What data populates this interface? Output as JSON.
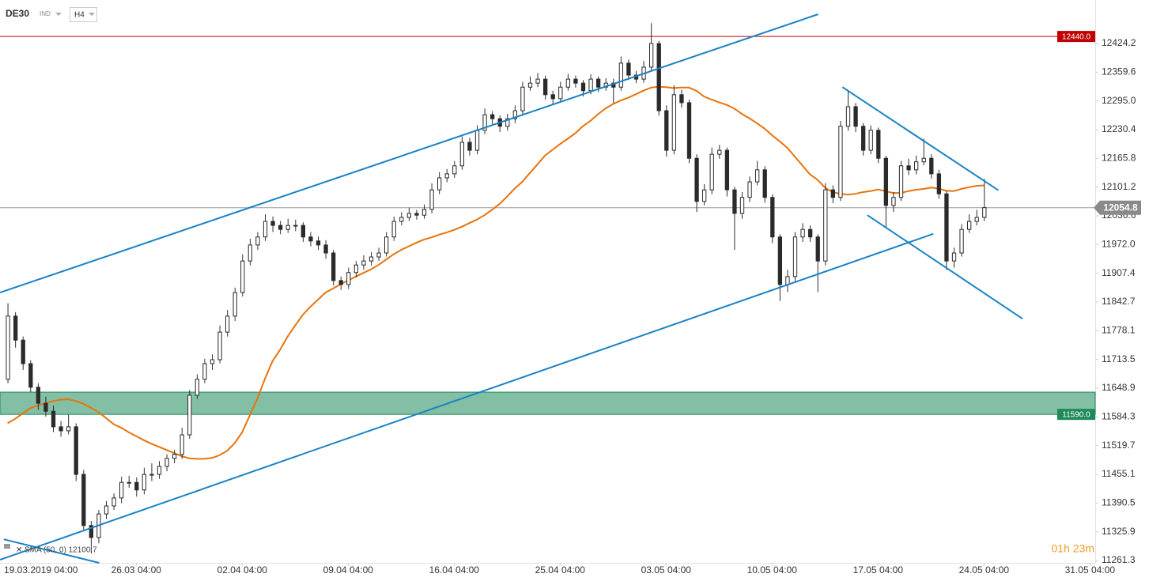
{
  "chart_data": {
    "type": "candlestick",
    "symbol": "DE30",
    "market": "IND",
    "timeframe": "H4",
    "timer": "01h 23m",
    "candle_up_color": "#ffffff",
    "candle_down_color": "#2b2b2b",
    "open": [
      11669,
      11811,
      11757,
      11704,
      11651,
      11615,
      11597,
      11562,
      11553,
      11562,
      11455,
      11340,
      11313,
      11366,
      11384,
      11402,
      11437,
      11437,
      11420,
      11455,
      11455,
      11473,
      11491,
      11500,
      11544,
      11633,
      11669,
      11704,
      11713,
      11775,
      11811,
      11864,
      11935,
      11971,
      11989,
      12024,
      12015,
      12006,
      12015,
      12015,
      11989,
      11980,
      11971,
      11953,
      11891,
      11882,
      11909,
      11926,
      11935,
      11944,
      11953,
      11989,
      12024,
      12033,
      12042,
      12038,
      12051,
      12095,
      12122,
      12131,
      12149,
      12202,
      12184,
      12229,
      12264,
      12255,
      12238,
      12255,
      12273,
      12326,
      12335,
      12344,
      12309,
      12300,
      12326,
      12344,
      12335,
      12318,
      12344,
      12326,
      12335,
      12326,
      12380,
      12353,
      12344,
      12371,
      12424,
      12273,
      12184,
      12309,
      12291,
      12166,
      12069,
      12095,
      12175,
      12184,
      12095,
      12042,
      12078,
      12113,
      12140,
      12078,
      11989,
      11882,
      11900,
      11989,
      12006,
      11989,
      11935,
      12095,
      12078,
      12238,
      12282,
      12238,
      12184,
      12229,
      12166,
      12060,
      12078,
      12149,
      12140,
      12158,
      12166,
      12131,
      12086,
      11935,
      11953,
      12006,
      12024,
      12033
    ],
    "high": [
      11840,
      11820,
      11765,
      11712,
      11660,
      11630,
      11610,
      11575,
      11590,
      11570,
      11465,
      11350,
      11375,
      11395,
      11412,
      11450,
      11452,
      11448,
      11470,
      11480,
      11485,
      11500,
      11510,
      11560,
      11645,
      11680,
      11715,
      11725,
      11790,
      11825,
      11875,
      11950,
      11985,
      12000,
      12040,
      12035,
      12025,
      12030,
      12028,
      12022,
      12000,
      11990,
      11982,
      11960,
      11900,
      11920,
      11935,
      11948,
      11955,
      11965,
      12000,
      12035,
      12045,
      12055,
      12050,
      12062,
      12110,
      12135,
      12142,
      12160,
      12215,
      12212,
      12240,
      12278,
      12272,
      12262,
      12266,
      12285,
      12338,
      12350,
      12358,
      12352,
      12318,
      12338,
      12356,
      12352,
      12342,
      12355,
      12350,
      12346,
      12345,
      12395,
      12388,
      12362,
      12385,
      12470,
      12430,
      12285,
      12330,
      12320,
      12298,
      12175,
      12108,
      12190,
      12196,
      12190,
      12102,
      12090,
      12125,
      12160,
      12148,
      12085,
      11995,
      11915,
      12000,
      12020,
      12015,
      11995,
      12110,
      12105,
      12250,
      12320,
      12290,
      12245,
      12240,
      12235,
      12172,
      12090,
      12160,
      12165,
      12172,
      12210,
      12175,
      12140,
      12092,
      11965,
      12018,
      12040,
      12050,
      12120
    ],
    "low": [
      11660,
      11740,
      11690,
      11640,
      11600,
      11585,
      11550,
      11540,
      11545,
      11440,
      11330,
      11277,
      11300,
      11355,
      11375,
      11390,
      11425,
      11405,
      11410,
      11440,
      11445,
      11462,
      11480,
      11490,
      11535,
      11625,
      11660,
      11690,
      11705,
      11765,
      11800,
      11855,
      11925,
      11960,
      11980,
      12000,
      11995,
      11998,
      12002,
      11978,
      11968,
      11960,
      11940,
      11880,
      11870,
      11872,
      11898,
      11915,
      11925,
      11935,
      11945,
      11980,
      12015,
      12025,
      12028,
      12030,
      12042,
      12085,
      12112,
      12122,
      12140,
      12172,
      12175,
      12220,
      12242,
      12225,
      12228,
      12245,
      12265,
      12318,
      12326,
      12298,
      12288,
      12292,
      12318,
      12325,
      12305,
      12310,
      12315,
      12318,
      12290,
      12318,
      12342,
      12335,
      12336,
      12362,
      12262,
      12170,
      12175,
      12280,
      12155,
      12045,
      12060,
      12085,
      12165,
      12080,
      11960,
      12030,
      12068,
      12105,
      12066,
      11975,
      11845,
      11865,
      11890,
      11978,
      11978,
      11865,
      11925,
      12065,
      12070,
      12228,
      12225,
      12172,
      12175,
      12155,
      12010,
      12045,
      12070,
      12128,
      12130,
      12150,
      12120,
      12075,
      11915,
      11920,
      11945,
      11998,
      12015,
      12025
    ],
    "close": [
      11811,
      11757,
      11704,
      11651,
      11615,
      11597,
      11562,
      11553,
      11562,
      11455,
      11340,
      11313,
      11366,
      11384,
      11402,
      11437,
      11437,
      11420,
      11455,
      11455,
      11473,
      11491,
      11500,
      11544,
      11633,
      11669,
      11704,
      11713,
      11775,
      11811,
      11864,
      11935,
      11971,
      11989,
      12024,
      12015,
      12006,
      12015,
      12015,
      11989,
      11980,
      11971,
      11953,
      11891,
      11882,
      11909,
      11926,
      11935,
      11944,
      11953,
      11989,
      12024,
      12033,
      12042,
      12038,
      12051,
      12095,
      12122,
      12131,
      12149,
      12202,
      12184,
      12229,
      12264,
      12255,
      12238,
      12255,
      12273,
      12326,
      12335,
      12344,
      12309,
      12300,
      12326,
      12344,
      12335,
      12318,
      12344,
      12326,
      12335,
      12326,
      12380,
      12353,
      12344,
      12371,
      12424,
      12273,
      12184,
      12309,
      12291,
      12166,
      12069,
      12095,
      12175,
      12184,
      12095,
      12042,
      12078,
      12113,
      12140,
      12078,
      11989,
      11882,
      11900,
      11989,
      12006,
      11989,
      11935,
      12095,
      12078,
      12238,
      12282,
      12238,
      12184,
      12229,
      12166,
      12060,
      12078,
      12149,
      12140,
      12158,
      12166,
      12131,
      12086,
      11935,
      11953,
      12006,
      12024,
      12033,
      12055
    ],
    "indicator": {
      "label": "SMA (50, 0) 12100.7",
      "color": "#e8730c",
      "values": [
        11570,
        11580,
        11592,
        11604,
        11610,
        11615,
        11620,
        11623,
        11624,
        11620,
        11614,
        11605,
        11595,
        11582,
        11568,
        11560,
        11550,
        11541,
        11532,
        11524,
        11517,
        11510,
        11503,
        11496,
        11491,
        11490,
        11490,
        11492,
        11498,
        11508,
        11525,
        11550,
        11588,
        11625,
        11670,
        11710,
        11735,
        11765,
        11790,
        11814,
        11832,
        11848,
        11864,
        11873,
        11883,
        11891,
        11900,
        11908,
        11916,
        11926,
        11938,
        11950,
        11960,
        11968,
        11976,
        11983,
        11988,
        11994,
        11999,
        12005,
        12012,
        12020,
        12028,
        12038,
        12050,
        12063,
        12080,
        12098,
        12113,
        12133,
        12152,
        12172,
        12185,
        12198,
        12210,
        12222,
        12238,
        12250,
        12265,
        12278,
        12288,
        12296,
        12302,
        12310,
        12318,
        12325,
        12327,
        12326,
        12324,
        12325,
        12325,
        12318,
        12305,
        12298,
        12292,
        12286,
        12278,
        12266,
        12256,
        12245,
        12233,
        12218,
        12204,
        12190,
        12170,
        12150,
        12130,
        12118,
        12100,
        12090,
        12086,
        12084,
        12086,
        12090,
        12092,
        12096,
        12092,
        12088,
        12088,
        12092,
        12095,
        12097,
        12100,
        12098,
        12093,
        12092,
        12097,
        12101,
        12104,
        12105
      ]
    },
    "trendlines": [
      {
        "color": "#1a82c4",
        "x": [
          -1,
          107.1
        ],
        "y": [
          11864,
          12490
        ]
      },
      {
        "color": "#1a82c4",
        "x": [
          -1,
          122.3
        ],
        "y": [
          11263,
          11996
        ]
      },
      {
        "color": "#1a82c4",
        "x": [
          -0.5,
          12.1
        ],
        "y": [
          11309,
          11256
        ]
      },
      {
        "color": "#1a82c4",
        "x": [
          110.3,
          130.9
        ],
        "y": [
          12326,
          12094
        ]
      },
      {
        "color": "#1a82c4",
        "x": [
          113.6,
          134.1
        ],
        "y": [
          12038,
          11805
        ]
      }
    ],
    "resistance": {
      "value": 12440,
      "label": "12440.0",
      "color": "#c00000"
    },
    "zone": {
      "low": {
        "value": 11590,
        "label": "11590.0"
      },
      "high": 11640,
      "color": "#1e8a5a"
    },
    "last_price": 12054.8,
    "xlim": [
      -1,
      143.7
    ],
    "xticks": [
      {
        "value": 3,
        "label": "19.03.2019 04:00"
      },
      {
        "value": 17,
        "label": "26.03 04:00"
      },
      {
        "value": 31,
        "label": "02.04 04:00"
      },
      {
        "value": 45,
        "label": "09.04 04:00"
      },
      {
        "value": 59,
        "label": "16.04 04:00"
      },
      {
        "value": 73,
        "label": "25.04 04:00"
      },
      {
        "value": 87,
        "label": "03.05 04:00"
      },
      {
        "value": 101,
        "label": "10.05 04:00"
      },
      {
        "value": 115,
        "label": "17.05 04:00"
      },
      {
        "value": 129,
        "label": "24.05 04:00"
      },
      {
        "value": 143,
        "label": "31.05 04:00"
      }
    ],
    "ylim": [
      11256,
      12522
    ],
    "yticks": [
      12424.2,
      12359.6,
      {
        "value": 12295,
        "label": "12295.0"
      },
      12230.4,
      12165.8,
      12101.2,
      12036.6,
      {
        "value": 11972,
        "label": "11972.0"
      },
      11907.4,
      11842.7,
      11778.1,
      11713.5,
      11648.9,
      11584.3,
      11519.7,
      11455.1,
      11390.5,
      11325.9,
      11261.3
    ],
    "grid": false
  }
}
